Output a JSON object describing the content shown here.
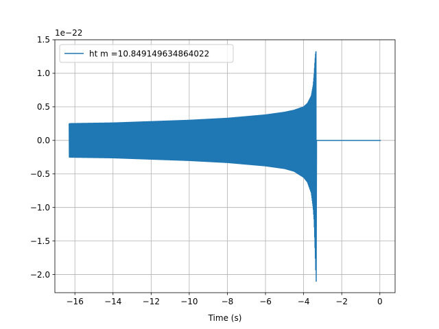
{
  "chart_data": {
    "type": "line",
    "title": "",
    "xlabel": "Time (s)",
    "ylabel": "",
    "y_offset_label": "1e−22",
    "xlim": [
      -17.05,
      0.8
    ],
    "ylim": [
      -2.27,
      1.5
    ],
    "xticks": [
      -16,
      -14,
      -12,
      -10,
      -8,
      -6,
      -4,
      -2,
      0
    ],
    "xtick_labels": [
      "−16",
      "−14",
      "−12",
      "−10",
      "−8",
      "−6",
      "−4",
      "−2",
      "0"
    ],
    "yticks": [
      -2.0,
      -1.5,
      -1.0,
      -0.5,
      0.0,
      0.5,
      1.0,
      1.5
    ],
    "ytick_labels": [
      "−2.0",
      "−1.5",
      "−1.0",
      "−0.5",
      "0.0",
      "0.5",
      "1.0",
      "1.5"
    ],
    "grid": true,
    "legend_placement": "upper-left",
    "series": [
      {
        "name": "ht m =10.849149634864022",
        "color": "#1f77b4",
        "signal_start": -16.3,
        "merger_time": -3.35,
        "end_time": 0.05,
        "envelope": {
          "t": [
            -16.3,
            -14,
            -12,
            -10,
            -8,
            -6,
            -5,
            -4.5,
            -4,
            -3.8,
            -3.6,
            -3.5,
            -3.45,
            -3.42,
            -3.38,
            -3.35,
            -3.34
          ],
          "upper": [
            0.25,
            0.26,
            0.28,
            0.3,
            0.33,
            0.38,
            0.42,
            0.45,
            0.5,
            0.55,
            0.66,
            0.82,
            0.98,
            1.12,
            1.28,
            1.33,
            0.0
          ],
          "lower": [
            -0.25,
            -0.26,
            -0.28,
            -0.3,
            -0.33,
            -0.38,
            -0.42,
            -0.46,
            -0.55,
            -0.62,
            -0.78,
            -1.0,
            -1.2,
            -1.45,
            -1.8,
            -2.1,
            0.0
          ]
        }
      }
    ]
  }
}
